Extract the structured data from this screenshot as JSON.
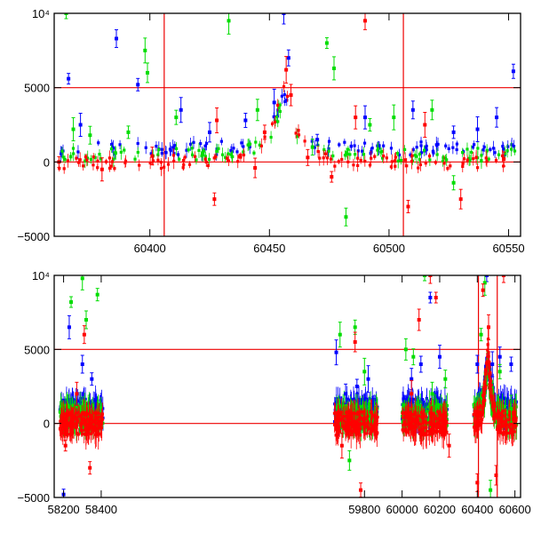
{
  "chart_data": [
    {
      "type": "scatter",
      "xlim": [
        60360,
        60555
      ],
      "ylim": [
        -5000,
        10000
      ],
      "x_ticks": [
        {
          "value": 60400,
          "label": "60400"
        },
        {
          "value": 60450,
          "label": "60450"
        },
        {
          "value": 60500,
          "label": "60500"
        },
        {
          "value": 60550,
          "label": "60550"
        }
      ],
      "y_ticks": [
        {
          "value": -5000,
          "label": "−5000"
        },
        {
          "value": 0,
          "label": "0"
        },
        {
          "value": 5000,
          "label": "5000"
        },
        {
          "value": 10000,
          "label": "10⁴"
        }
      ],
      "hlines": [
        0,
        5000
      ],
      "vlines": [
        60406,
        60506
      ],
      "colors": {
        "blue": "#0000ff",
        "green": "#00dd00",
        "red": "#ff0000",
        "line": "#ee0000"
      },
      "series": [
        {
          "color": "blue",
          "x": [
            60366,
            60371,
            60386,
            60395,
            60413,
            60425,
            60440,
            60452,
            60456,
            60458,
            60470,
            60490,
            60510,
            60527,
            60537,
            60545,
            60552
          ],
          "y": [
            5600,
            2500,
            8300,
            5200,
            3500,
            2000,
            2800,
            4000,
            10000,
            7000,
            1500,
            3000,
            3500,
            2000,
            2200,
            3000,
            6100
          ]
        },
        {
          "color": "green",
          "x": [
            60365,
            60368,
            60375,
            60391,
            60398,
            60399,
            60411,
            60433,
            60445,
            60468,
            60474,
            60477,
            60482,
            60492,
            60502,
            60518,
            60527
          ],
          "y": [
            10000,
            2200,
            1800,
            2000,
            7500,
            6000,
            3000,
            9500,
            3500,
            1000,
            8000,
            6300,
            -3700,
            2500,
            3000,
            3500,
            -1400
          ]
        },
        {
          "color": "red",
          "x": [
            60362,
            60380,
            60401,
            60427,
            60428,
            60444,
            60448,
            60457,
            60459,
            60466,
            60476,
            60486,
            60490,
            60508,
            60515,
            60530,
            60548
          ],
          "y": [
            0,
            -500,
            400,
            -2500,
            2800,
            -400,
            2000,
            6200,
            4500,
            300,
            -1000,
            3000,
            9500,
            -3000,
            2500,
            -2500,
            200
          ]
        }
      ]
    },
    {
      "type": "scatter",
      "xlim": [
        58150,
        60630
      ],
      "ylim": [
        -5000,
        10000
      ],
      "x_ticks": [
        {
          "value": 58200,
          "label": "58200"
        },
        {
          "value": 58400,
          "label": "58400"
        },
        {
          "value": 59800,
          "label": "59800"
        },
        {
          "value": 60000,
          "label": "60000"
        },
        {
          "value": 60200,
          "label": "60200"
        },
        {
          "value": 60400,
          "label": "60400"
        },
        {
          "value": 60600,
          "label": "60600"
        }
      ],
      "y_ticks": [
        {
          "value": -5000,
          "label": "−5000"
        },
        {
          "value": 0,
          "label": "0"
        },
        {
          "value": 5000,
          "label": "5000"
        },
        {
          "value": 10000,
          "label": "10⁴"
        }
      ],
      "hlines": [
        0,
        5000
      ],
      "vlines": [
        60406,
        60506
      ],
      "colors": {
        "blue": "#0000ff",
        "green": "#00dd00",
        "red": "#ff0000",
        "line": "#ee0000"
      },
      "series": [
        {
          "color": "blue",
          "x": [
            58200,
            58230,
            58300,
            58350,
            59650,
            59700,
            59760,
            59820,
            60050,
            60100,
            60150,
            60200,
            60400,
            60450,
            60480,
            60520,
            60580
          ],
          "y": [
            -4800,
            6500,
            4000,
            3000,
            4800,
            2000,
            2500,
            3000,
            3000,
            4000,
            8500,
            4500,
            4000,
            10000,
            4000,
            4500,
            4000
          ]
        },
        {
          "color": "green",
          "x": [
            58240,
            58300,
            58320,
            58380,
            59670,
            59720,
            59750,
            59800,
            60020,
            60060,
            60120,
            60160,
            60230,
            60420,
            60440,
            60470,
            60520,
            60580
          ],
          "y": [
            8200,
            9800,
            7000,
            8700,
            6000,
            -2500,
            6500,
            3500,
            5000,
            4500,
            10000,
            2000,
            3000,
            6000,
            9500,
            -4500,
            3500,
            1000
          ]
        },
        {
          "color": "red",
          "x": [
            58210,
            58270,
            58310,
            58340,
            59680,
            59750,
            59780,
            60050,
            60090,
            60150,
            60180,
            60250,
            60400,
            60430,
            60460,
            60500,
            60540
          ],
          "y": [
            -1500,
            2000,
            6000,
            -3000,
            -1500,
            5500,
            -4500,
            2000,
            7000,
            10000,
            8500,
            -1500,
            -4000,
            9000,
            6500,
            -3500,
            10000
          ]
        }
      ]
    }
  ]
}
